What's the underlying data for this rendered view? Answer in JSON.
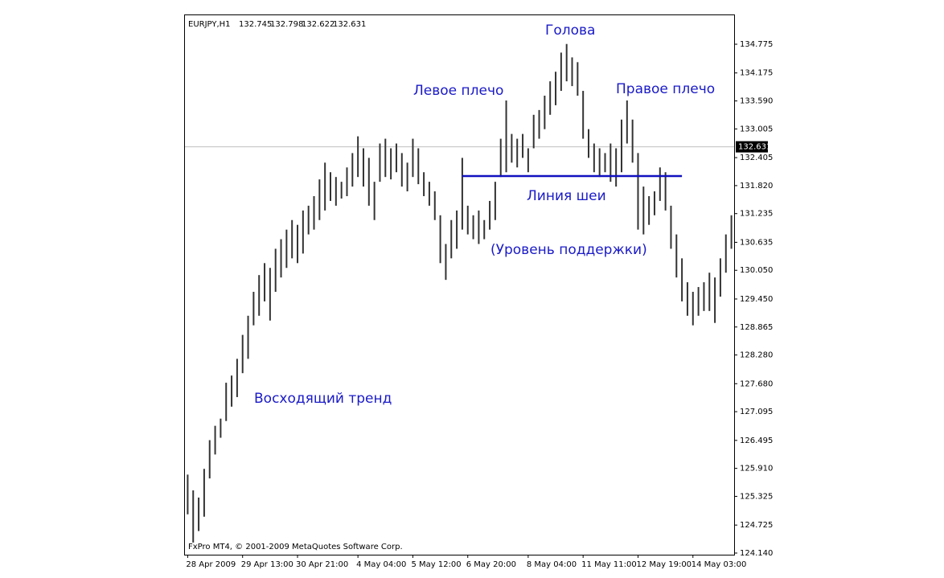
{
  "chart_data": {
    "type": "range",
    "title": "EURJPY,H1",
    "header_ohlc": [
      132.745,
      132.798,
      132.622,
      132.631
    ],
    "footer": "FxPro MT4, © 2001-2009 MetaQuotes Software Corp.",
    "color": "#333333",
    "last_price": 132.631,
    "neckline": {
      "level": 132.02,
      "from": 50,
      "to": 90,
      "color": "#1010c0"
    },
    "annotations": [
      "Голова",
      "Левое плечо",
      "Правое плечо",
      "Линия шеи",
      "(Уровень поддержки)",
      "Восходящий тренд"
    ],
    "categories": [
      "28 Apr 2009",
      null,
      null,
      null,
      null,
      null,
      null,
      null,
      null,
      null,
      "29 Apr 13:00",
      null,
      null,
      null,
      null,
      null,
      null,
      null,
      null,
      null,
      "30 Apr 21:00",
      null,
      null,
      null,
      null,
      null,
      null,
      null,
      null,
      null,
      null,
      "4 May 04:00",
      null,
      null,
      null,
      null,
      null,
      null,
      null,
      null,
      null,
      "5 May 12:00",
      null,
      null,
      null,
      null,
      null,
      null,
      null,
      null,
      null,
      "6 May 20:00",
      null,
      null,
      null,
      null,
      null,
      null,
      null,
      null,
      null,
      null,
      "8 May 04:00",
      null,
      null,
      null,
      null,
      null,
      null,
      null,
      null,
      null,
      "11 May 11:00",
      null,
      null,
      null,
      null,
      null,
      null,
      null,
      null,
      null,
      "12 May 19:00",
      null,
      null,
      null,
      null,
      null,
      null,
      null,
      null,
      null,
      "14 May 03:00",
      null,
      null,
      null,
      null,
      null,
      null,
      null
    ],
    "high": [
      125.78,
      125.45,
      125.3,
      125.9,
      126.5,
      126.8,
      126.95,
      127.7,
      127.85,
      128.2,
      128.7,
      129.1,
      129.6,
      129.95,
      130.2,
      130.1,
      130.5,
      130.7,
      130.9,
      131.1,
      131.0,
      131.3,
      131.4,
      131.6,
      131.95,
      132.3,
      132.1,
      132.0,
      131.9,
      132.2,
      132.5,
      132.85,
      132.6,
      132.4,
      131.9,
      132.7,
      132.8,
      132.6,
      132.7,
      132.5,
      132.3,
      132.8,
      132.6,
      132.1,
      131.9,
      131.7,
      131.2,
      130.6,
      131.1,
      131.3,
      132.4,
      131.4,
      131.2,
      131.3,
      131.1,
      131.5,
      131.9,
      132.8,
      133.6,
      132.9,
      132.8,
      132.9,
      132.6,
      133.3,
      133.4,
      133.7,
      134.0,
      134.2,
      134.6,
      134.78,
      134.5,
      134.4,
      133.8,
      133.0,
      132.7,
      132.6,
      132.5,
      132.7,
      132.6,
      133.2,
      133.6,
      133.2,
      132.5,
      131.8,
      131.6,
      131.7,
      132.2,
      132.1,
      131.4,
      130.8,
      130.3,
      129.8,
      129.6,
      129.7,
      129.8,
      130.0,
      129.9,
      130.3,
      130.8,
      131.2
    ],
    "low": [
      124.95,
      124.36,
      124.6,
      124.9,
      125.7,
      126.2,
      126.55,
      126.9,
      127.2,
      127.4,
      127.9,
      128.2,
      128.9,
      129.1,
      129.4,
      129.0,
      129.6,
      129.9,
      130.1,
      130.3,
      130.2,
      130.4,
      130.8,
      130.9,
      131.1,
      131.3,
      131.5,
      131.4,
      131.55,
      131.6,
      131.8,
      132.0,
      131.8,
      131.4,
      131.1,
      131.9,
      132.0,
      131.95,
      132.1,
      131.8,
      131.7,
      132.0,
      131.85,
      131.6,
      131.4,
      131.1,
      130.2,
      129.85,
      130.3,
      130.5,
      130.9,
      130.8,
      130.7,
      130.6,
      130.7,
      130.9,
      131.1,
      132.0,
      132.1,
      132.3,
      132.2,
      132.4,
      132.1,
      132.6,
      132.8,
      133.0,
      133.3,
      133.5,
      133.8,
      134.0,
      133.9,
      133.7,
      132.8,
      132.4,
      132.1,
      132.0,
      132.1,
      131.9,
      131.8,
      132.1,
      132.7,
      132.3,
      130.9,
      130.8,
      131.0,
      131.2,
      131.5,
      131.3,
      130.5,
      129.9,
      129.4,
      129.1,
      128.9,
      129.1,
      129.2,
      129.2,
      128.95,
      129.5,
      130.0,
      130.5
    ],
    "ylim": [
      124.106,
      135.397
    ],
    "yticks": [
      134.775,
      134.175,
      {
        "value": 133.59,
        "label": "133.590"
      },
      133.005,
      132.405,
      {
        "value": 131.82,
        "label": "131.820"
      },
      131.235,
      130.635,
      {
        "value": 130.05,
        "label": "130.050"
      },
      {
        "value": 129.45,
        "label": "129.450"
      },
      128.865,
      {
        "value": 128.28,
        "label": "128.280"
      },
      {
        "value": 127.68,
        "label": "127.680"
      },
      127.095,
      126.495,
      {
        "value": 125.91,
        "label": "125.910"
      },
      125.325,
      124.725,
      {
        "value": 124.14,
        "label": "124.140"
      }
    ]
  }
}
